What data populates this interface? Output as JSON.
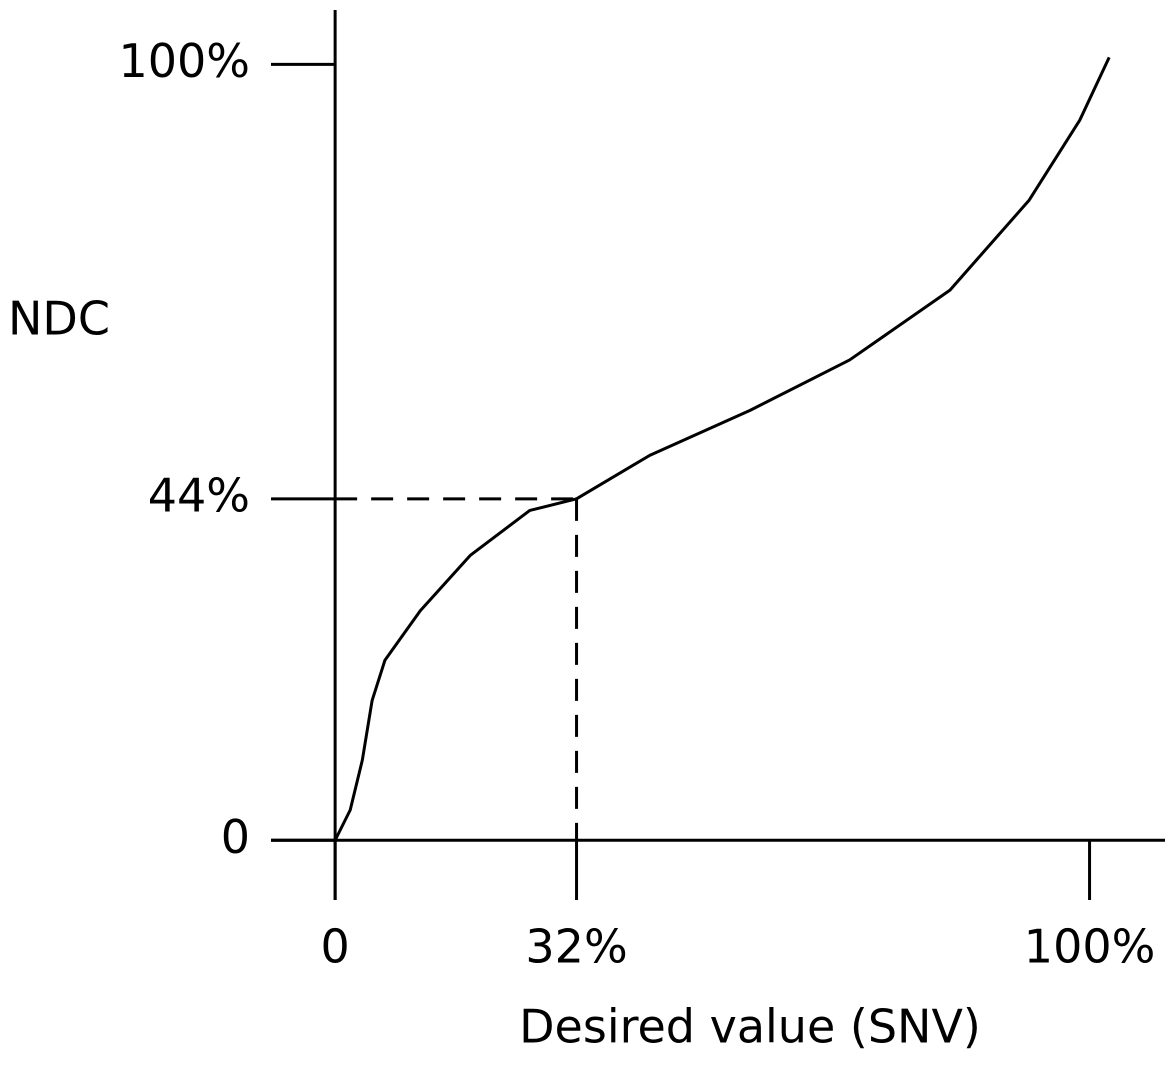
{
  "chart_data": {
    "type": "line",
    "x_label": "Desired value (SNV)",
    "y_label": "NDC",
    "x": [
      0,
      2,
      3.6,
      4.9,
      6.6,
      11.3,
      17.9,
      25.8,
      32,
      41.7,
      55,
      68.2,
      81.5,
      92,
      98.7,
      102.6
    ],
    "series": [
      {
        "color": "#000000",
        "values": [
          0,
          3.9,
          10.3,
          18,
          23.2,
          29.6,
          36.7,
          42.5,
          44,
          49.6,
          55.4,
          61.9,
          70.9,
          82.5,
          92.8,
          100.9
        ]
      }
    ],
    "xlim": [
      -8.5,
      110
    ],
    "ylim": [
      -7.7,
      107
    ],
    "xticks": [
      0,
      {
        "value": 32,
        "label": "32%"
      },
      {
        "value": 100,
        "label": "100%"
      }
    ],
    "yticks": [
      0,
      {
        "value": 44,
        "label": "44%"
      },
      {
        "value": 100,
        "label": "100%"
      }
    ],
    "grid": false
  }
}
